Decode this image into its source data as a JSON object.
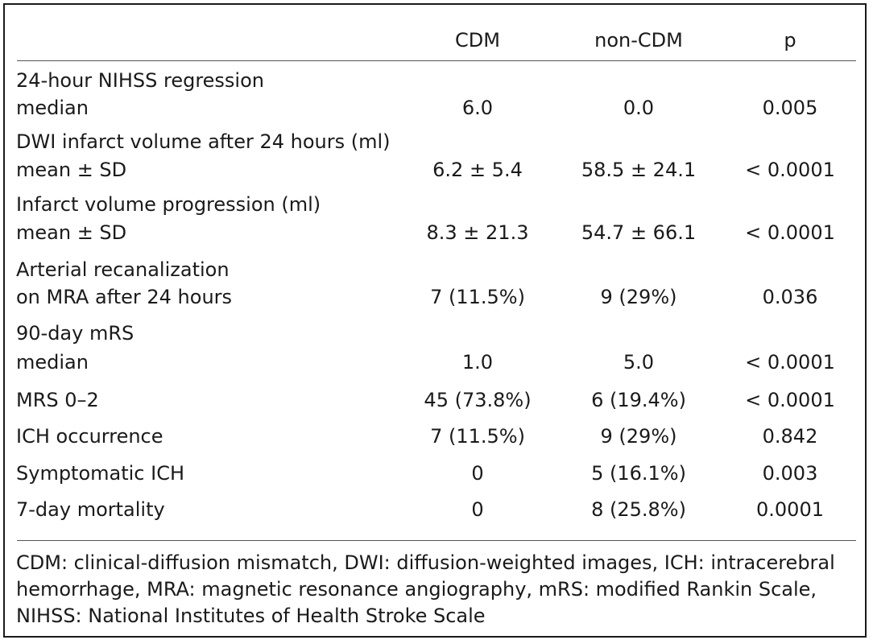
{
  "header": {
    "col_cdm": "CDM",
    "col_noncdm": "non-CDM",
    "col_p": "p"
  },
  "rows": [
    {
      "label1": "24-hour NIHSS regression",
      "label2": "median",
      "cdm": "6.0",
      "noncdm": "0.0",
      "p": "0.005"
    },
    {
      "label1": "DWI infarct volume after 24 hours (ml)",
      "label2": "mean ± SD",
      "cdm": "6.2 ± 5.4",
      "noncdm": "58.5 ± 24.1",
      "p": "< 0.0001"
    },
    {
      "label1": "Infarct volume progression (ml)",
      "label2": "mean ± SD",
      "cdm": "8.3 ± 21.3",
      "noncdm": "54.7 ± 66.1",
      "p": "< 0.0001"
    },
    {
      "label1": "Arterial recanalization",
      "label2": "on MRA after 24 hours",
      "cdm": "7 (11.5%)",
      "noncdm": "9 (29%)",
      "p": "0.036"
    },
    {
      "label1": "90-day mRS",
      "label2": "median",
      "cdm": "1.0",
      "noncdm": "5.0",
      "p": "< 0.0001"
    },
    {
      "label1": "MRS 0–2",
      "cdm": "45 (73.8%)",
      "noncdm": "6 (19.4%)",
      "p": "< 0.0001"
    },
    {
      "label1": "ICH occurrence",
      "cdm": "7 (11.5%)",
      "noncdm": "9 (29%)",
      "p": "0.842"
    },
    {
      "label1": "Symptomatic ICH",
      "cdm": "0",
      "noncdm": "5 (16.1%)",
      "p": "0.003"
    },
    {
      "label1": "7-day mortality",
      "cdm": "0",
      "noncdm": "8 (25.8%)",
      "p": "0.0001"
    }
  ],
  "footnote": {
    "line1": "CDM: clinical-diffusion mismatch, DWI: diffusion-weighted images, ICH: intracerebral",
    "line2": "hemorrhage, MRA: magnetic resonance angiography, mRS: modified Rankin Scale,",
    "line3": "NIHSS: National Institutes of Health Stroke Scale"
  }
}
